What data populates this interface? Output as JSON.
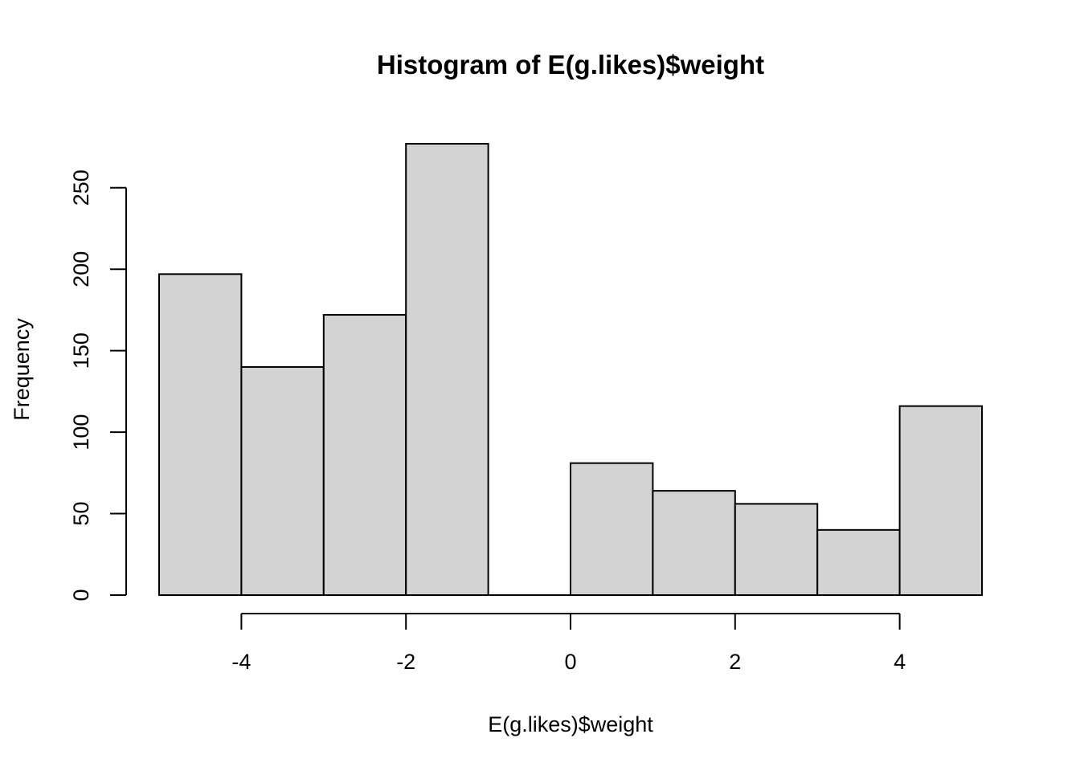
{
  "chart_data": {
    "type": "bar",
    "title": "Histogram of E(g.likes)$weight",
    "xlabel": "E(g.likes)$weight",
    "ylabel": "Frequency",
    "bins": [
      {
        "x0": -5,
        "x1": -4,
        "count": 197
      },
      {
        "x0": -4,
        "x1": -3,
        "count": 140
      },
      {
        "x0": -3,
        "x1": -2,
        "count": 172
      },
      {
        "x0": -2,
        "x1": -1,
        "count": 277
      },
      {
        "x0": -1,
        "x1": 0,
        "count": 0
      },
      {
        "x0": 0,
        "x1": 1,
        "count": 81
      },
      {
        "x0": 1,
        "x1": 2,
        "count": 64
      },
      {
        "x0": 2,
        "x1": 3,
        "count": 56
      },
      {
        "x0": 3,
        "x1": 4,
        "count": 40
      },
      {
        "x0": 4,
        "x1": 5,
        "count": 116
      }
    ],
    "xticks": [
      -4,
      -2,
      0,
      2,
      4
    ],
    "xtick_labels": [
      "-4",
      "-2",
      "0",
      "2",
      "4"
    ],
    "yticks": [
      0,
      50,
      100,
      150,
      200,
      250
    ],
    "ytick_labels": [
      "0",
      "50",
      "100",
      "150",
      "200",
      "250"
    ],
    "xlim": [
      -5,
      5
    ],
    "ylim": [
      0,
      277
    ],
    "grid": false,
    "legend": "none",
    "colors": {
      "bar_fill": "#d3d3d3",
      "bar_stroke": "#000000",
      "axis": "#000000"
    }
  }
}
